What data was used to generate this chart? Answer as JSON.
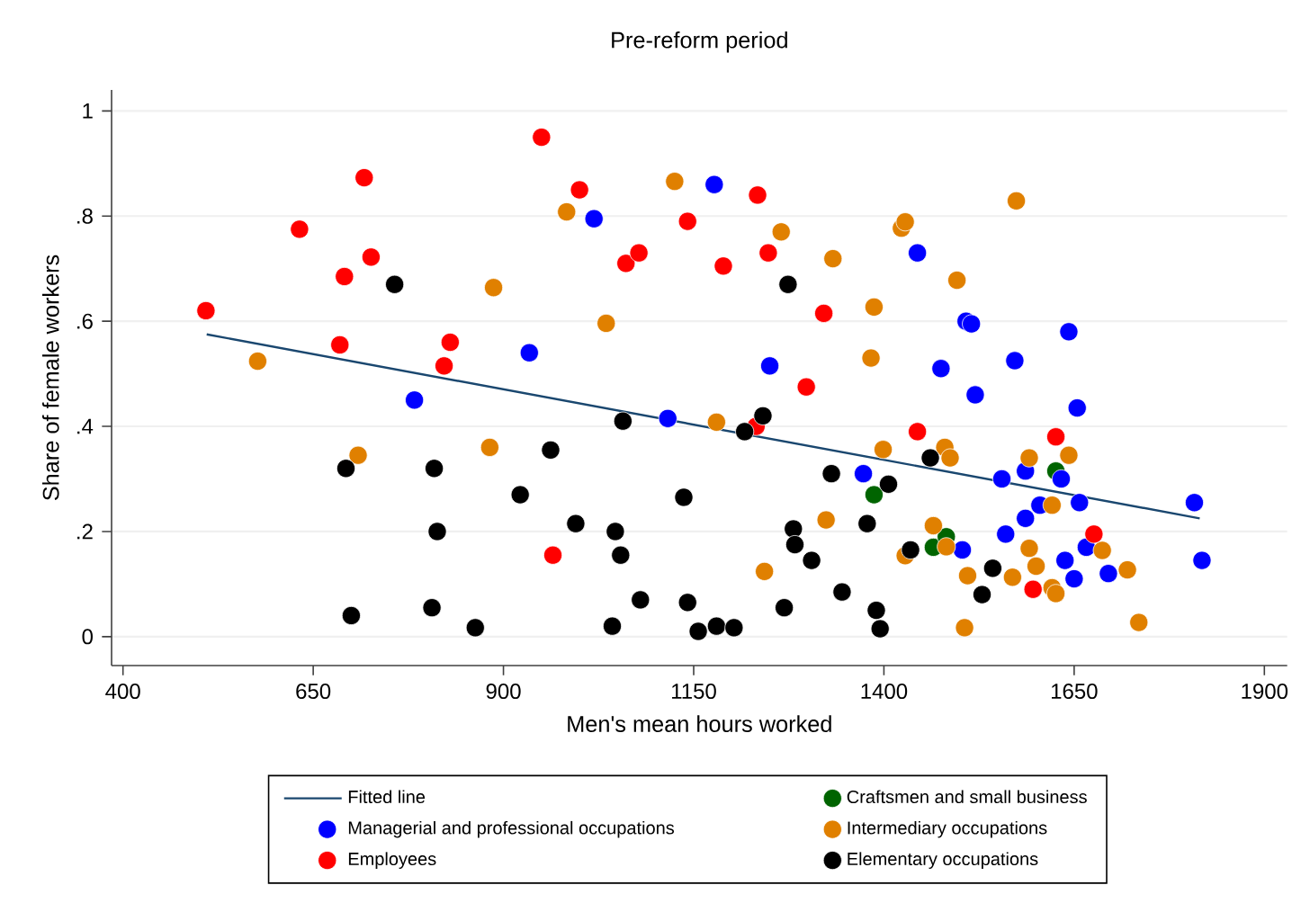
{
  "chart_data": {
    "type": "scatter",
    "title": "Pre-reform period",
    "xlabel": "Men's mean hours worked",
    "ylabel": "Share of female workers",
    "xlim": [
      385,
      1930
    ],
    "ylim": [
      -0.055,
      1.04
    ],
    "xticks": [
      400,
      650,
      900,
      1150,
      1400,
      1650,
      1900
    ],
    "yticks": [
      {
        "value": 0,
        "label": "0"
      },
      {
        "value": 0.2,
        "label": ".2"
      },
      {
        "value": 0.4,
        "label": ".4"
      },
      {
        "value": 0.6,
        "label": ".6"
      },
      {
        "value": 0.8,
        "label": ".8"
      },
      {
        "value": 1,
        "label": "1"
      }
    ],
    "grid": "y",
    "legend": "bottom",
    "marker": "circle",
    "series": [
      {
        "name": "Fitted line",
        "type": "line",
        "line_style": "solid",
        "marker": "none",
        "color": "#1a476f",
        "x": [
          510,
          1815
        ],
        "values": [
          0.575,
          0.225
        ]
      },
      {
        "name": "Craftsmen and small business",
        "color": "#006400",
        "x": [
          1387,
          1465,
          1482,
          1626
        ],
        "values": [
          0.27,
          0.17,
          0.19,
          0.315
        ]
      },
      {
        "name": "Managerial and professional occupations",
        "color": "#0000ff",
        "x": [
          783,
          934,
          1019,
          1116,
          1177,
          1250,
          1373,
          1444,
          1475,
          1503,
          1508,
          1515,
          1520,
          1555,
          1560,
          1572,
          1586,
          1586,
          1605,
          1633,
          1638,
          1643,
          1650,
          1654,
          1657,
          1666,
          1695,
          1808,
          1818
        ],
        "values": [
          0.45,
          0.54,
          0.795,
          0.415,
          0.86,
          0.515,
          0.31,
          0.73,
          0.51,
          0.165,
          0.6,
          0.595,
          0.46,
          0.3,
          0.195,
          0.525,
          0.315,
          0.225,
          0.25,
          0.3,
          0.145,
          0.58,
          0.11,
          0.435,
          0.255,
          0.17,
          0.12,
          0.255,
          0.145
        ]
      },
      {
        "name": "Intermediary occupations",
        "color": "#e08000",
        "x": [
          577,
          709,
          882,
          887,
          983,
          1035,
          1125,
          1180,
          1243,
          1265,
          1324,
          1333,
          1383,
          1387,
          1399,
          1423,
          1428,
          1428,
          1465,
          1480,
          1482,
          1487,
          1496,
          1506,
          1510,
          1569,
          1574,
          1591,
          1591,
          1600,
          1621,
          1621,
          1626,
          1643,
          1687,
          1720,
          1735
        ],
        "values": [
          0.524,
          0.345,
          0.36,
          0.664,
          0.808,
          0.596,
          0.866,
          0.408,
          0.124,
          0.77,
          0.222,
          0.719,
          0.53,
          0.627,
          0.356,
          0.777,
          0.789,
          0.154,
          0.211,
          0.36,
          0.171,
          0.34,
          0.678,
          0.017,
          0.116,
          0.113,
          0.829,
          0.34,
          0.168,
          0.134,
          0.25,
          0.093,
          0.082,
          0.345,
          0.164,
          0.127,
          0.027
        ]
      },
      {
        "name": "Employees",
        "color": "#ff0000",
        "x": [
          509,
          632,
          685,
          691,
          717,
          726,
          822,
          830,
          950,
          965,
          1000,
          1061,
          1078,
          1142,
          1189,
          1232,
          1234,
          1248,
          1298,
          1321,
          1444,
          1596,
          1626,
          1676
        ],
        "values": [
          0.62,
          0.775,
          0.555,
          0.685,
          0.873,
          0.722,
          0.515,
          0.56,
          0.95,
          0.155,
          0.85,
          0.71,
          0.73,
          0.79,
          0.705,
          0.4,
          0.84,
          0.73,
          0.475,
          0.615,
          0.39,
          0.09,
          0.38,
          0.195
        ]
      },
      {
        "name": "Elementary occupations",
        "color": "#000000",
        "x": [
          693,
          700,
          757,
          806,
          809,
          813,
          863,
          922,
          962,
          995,
          1043,
          1047,
          1054,
          1057,
          1080,
          1137,
          1142,
          1156,
          1180,
          1203,
          1217,
          1241,
          1269,
          1274,
          1281,
          1283,
          1305,
          1331,
          1345,
          1378,
          1390,
          1395,
          1406,
          1435,
          1461,
          1529,
          1543
        ],
        "values": [
          0.32,
          0.04,
          0.67,
          0.055,
          0.32,
          0.2,
          0.017,
          0.27,
          0.355,
          0.215,
          0.02,
          0.2,
          0.155,
          0.41,
          0.07,
          0.265,
          0.065,
          0.01,
          0.02,
          0.017,
          0.39,
          0.42,
          0.055,
          0.67,
          0.205,
          0.175,
          0.145,
          0.31,
          0.085,
          0.215,
          0.05,
          0.015,
          0.29,
          0.165,
          0.34,
          0.08,
          0.13
        ]
      }
    ]
  }
}
